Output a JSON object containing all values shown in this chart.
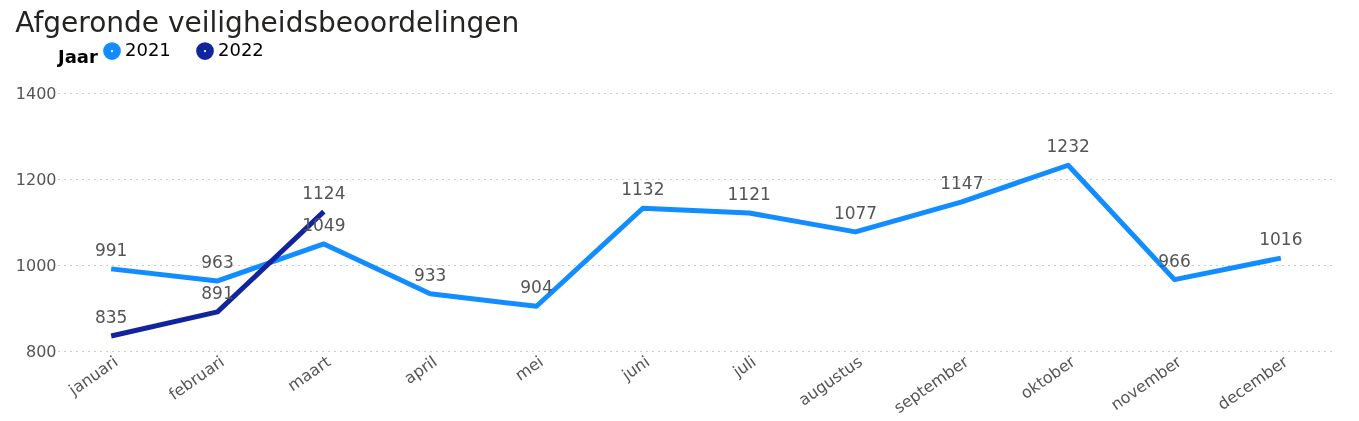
{
  "chart_data": {
    "type": "line",
    "title": "Afgeronde veiligheidsbeoordelingen",
    "legend_title": "Jaar",
    "categories": [
      "januari",
      "februari",
      "maart",
      "april",
      "mei",
      "juni",
      "juli",
      "augustus",
      "september",
      "oktober",
      "november",
      "december"
    ],
    "series": [
      {
        "name": "2021",
        "color": "#118dff",
        "values": [
          991,
          963,
          1049,
          933,
          904,
          1132,
          1121,
          1077,
          1147,
          1232,
          966,
          1016
        ]
      },
      {
        "name": "2022",
        "color": "#12239e",
        "values": [
          835,
          891,
          1124,
          null,
          null,
          null,
          null,
          null,
          null,
          null,
          null,
          null
        ]
      }
    ],
    "ylim": [
      800,
      1400
    ],
    "yticks": [
      800,
      1000,
      1200,
      1400
    ],
    "grid": "y",
    "legend": "top left",
    "data_labels": true,
    "marker": "none",
    "line_style": "solid"
  }
}
